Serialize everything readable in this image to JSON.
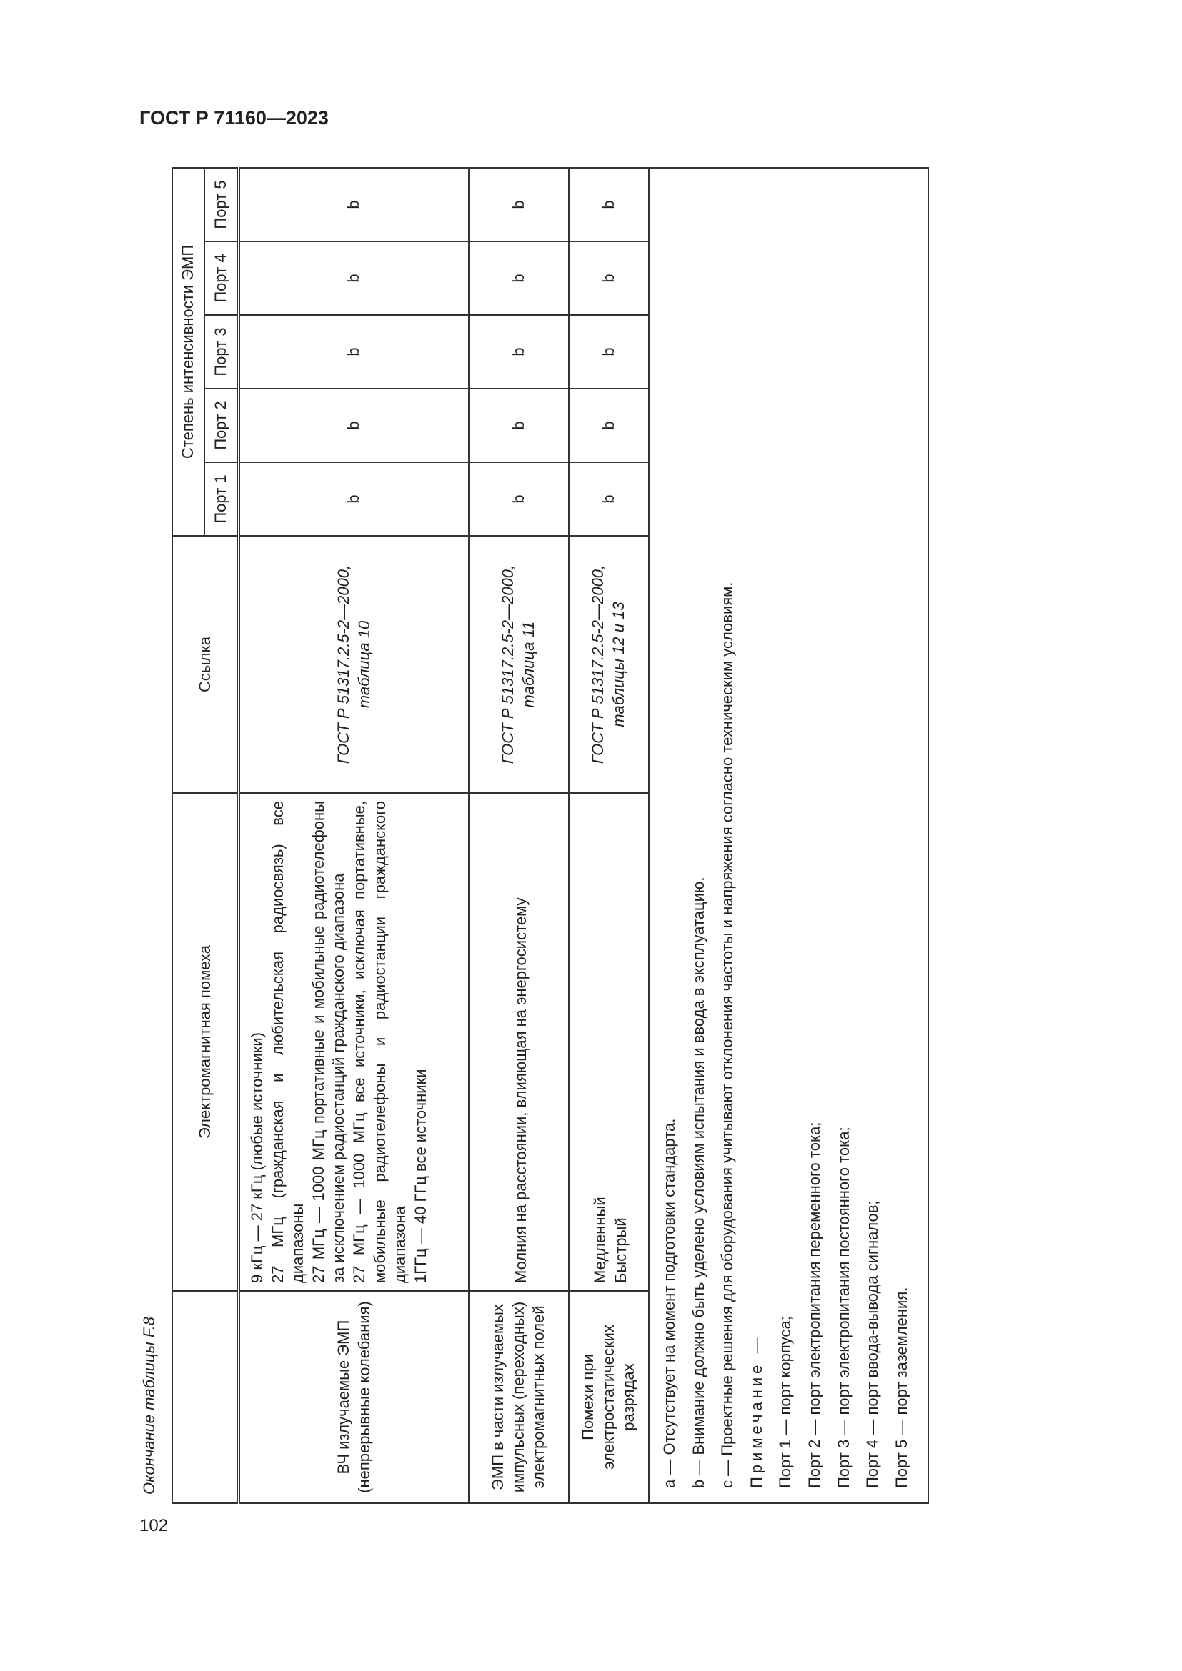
{
  "header": {
    "doc_id": "ГОСТ Р 71160—2023",
    "page_number": "102",
    "continuation": "Окончание таблицы F.8"
  },
  "table": {
    "columns": {
      "interference": "Электромагнитная помеха",
      "reference": "Ссылка",
      "severity": "Степень интенсивности ЭМП",
      "ports": [
        "Порт 1",
        "Порт 2",
        "Порт 3",
        "Порт 4",
        "Порт 5"
      ]
    },
    "rows": [
      {
        "category": "ВЧ излучаемые ЭМП (непрерывные колебания)",
        "description": [
          "9 кГц — 27 кГц (любые источники)",
          "27 МГц (гражданская и любительская радиосвязь) все диапазоны",
          "27 МГц — 1000 МГц портативные и мобильные радиотелефоны за исключением радиостанций гражданского диапазона",
          "27 МГц — 1000 МГц все источники, исключая портативные, мобильные радиотелефоны и радиостанции гражданского диапазона",
          "1ГГц — 40 ГГц все источники"
        ],
        "reference": "ГОСТ Р 51317.2.5-2—2000, таблица 10",
        "ports": [
          "b",
          "b",
          "b",
          "b",
          "b"
        ]
      },
      {
        "category": "ЭМП в части излучаемых импульсных (переходных) электромагнитных полей",
        "description": [
          "Молния на расстоянии, влияющая на энергосистему"
        ],
        "reference": "ГОСТ Р 51317.2.5-2—2000, таблица 11",
        "ports": [
          "b",
          "b",
          "b",
          "b",
          "b"
        ]
      },
      {
        "category": "Помехи при электростатических разрядах",
        "description": [
          "Медленный",
          "Быстрый"
        ],
        "reference": "ГОСТ Р 51317.2.5-2—2000, таблицы 12 и 13",
        "ports": [
          "b",
          "b",
          "b",
          "b",
          "b"
        ]
      }
    ],
    "notes": {
      "footnotes": [
        "a — Отсутствует на момент подготовки стандарта.",
        "b — Внимание должно быть уделено условиям испытания и ввода в эксплуатацию.",
        "c — Проектные решения для оборудования учитывают отклонения частоты и напряжения согласно техническим условиям."
      ],
      "note_label": "Примечание —",
      "items": [
        "Порт 1 — порт корпуса;",
        "Порт 2 — порт электропитания переменного тока;",
        "Порт 3 — порт электропитания постоянного тока;",
        "Порт 4 — порт ввода-вывода сигналов;",
        "Порт 5 — порт заземления."
      ]
    }
  }
}
